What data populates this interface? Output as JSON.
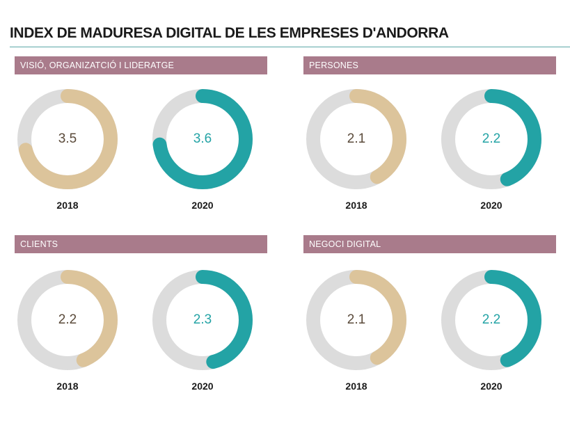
{
  "title": "INDEX DE MADURESA DIGITAL DE LES EMPRESES D'ANDORRA",
  "colors": {
    "track": "#dcdcdc",
    "c2018": "#dcc49b",
    "c2020": "#23a3a5",
    "text2018": "#5a4a3a",
    "text2020": "#23a3a5",
    "banner": "#a97b8b"
  },
  "chart_data": [
    {
      "type": "donut",
      "title": "VISIÓ, ORGANIZATCIÓ I LIDERATGE",
      "series": [
        {
          "year": "2018",
          "value": 3.5,
          "display": "3.5",
          "fill": 0.71
        },
        {
          "year": "2020",
          "value": 3.6,
          "display": "3.6",
          "fill": 0.73
        }
      ]
    },
    {
      "type": "donut",
      "title": "PERSONES",
      "series": [
        {
          "year": "2018",
          "value": 2.1,
          "display": "2.1",
          "fill": 0.42
        },
        {
          "year": "2020",
          "value": 2.2,
          "display": "2.2",
          "fill": 0.44
        }
      ]
    },
    {
      "type": "donut",
      "title": "CLIENTS",
      "series": [
        {
          "year": "2018",
          "value": 2.2,
          "display": "2.2",
          "fill": 0.44
        },
        {
          "year": "2020",
          "value": 2.3,
          "display": "2.3",
          "fill": 0.46
        }
      ]
    },
    {
      "type": "donut",
      "title": "NEGOCI DIGITAL",
      "series": [
        {
          "year": "2018",
          "value": 2.1,
          "display": "2.1",
          "fill": 0.42
        },
        {
          "year": "2020",
          "value": 2.2,
          "display": "2.2",
          "fill": 0.44
        }
      ]
    }
  ]
}
